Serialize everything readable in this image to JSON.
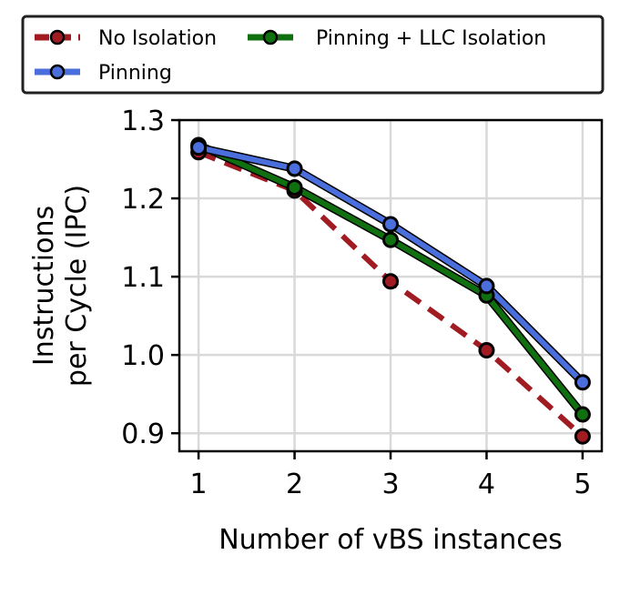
{
  "chart_data": {
    "type": "line",
    "title": "",
    "xlabel": "Number of vBS instances",
    "ylabel_lines": [
      "Instructions",
      "per Cycle (IPC)"
    ],
    "x": [
      1,
      2,
      3,
      4,
      5
    ],
    "x_tick_labels": [
      "1",
      "2",
      "3",
      "4",
      "5"
    ],
    "y_ticks": [
      0.9,
      1.0,
      1.1,
      1.2,
      1.3
    ],
    "y_tick_labels": [
      "0.9",
      "1.0",
      "1.1",
      "1.2",
      "1.3"
    ],
    "xlim": [
      0.8,
      5.2
    ],
    "ylim": [
      0.877,
      1.3
    ],
    "grid": true,
    "legend_position": "top",
    "series": [
      {
        "name": "No Isolation",
        "color": "#a01c22",
        "dashed": true,
        "values": [
          1.259,
          1.21,
          1.094,
          1.006,
          0.896
        ]
      },
      {
        "name": "Pinning + LLC Isolation",
        "color": "#107010",
        "dashed": false,
        "values": [
          1.268,
          1.214,
          1.147,
          1.076,
          0.924
        ]
      },
      {
        "name": "Pinning",
        "color": "#4a6fdc",
        "dashed": false,
        "values": [
          1.265,
          1.238,
          1.167,
          1.088,
          0.965
        ]
      }
    ]
  }
}
